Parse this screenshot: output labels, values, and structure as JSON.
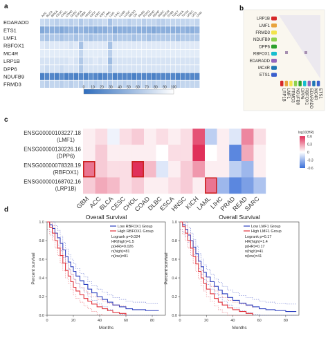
{
  "panel_labels": {
    "a": "a",
    "b": "b",
    "c": "c",
    "d": "d"
  },
  "colors": {
    "blue_dark": "#2f6dbd",
    "blue_light": "#e8f0fa",
    "red": "#e0303a",
    "highlight": "#cc2222"
  },
  "panel_a": {
    "rows": [
      "EDARADD",
      "ETS1",
      "LMF1",
      "RBFOX1",
      "MC4R",
      "LRP1B",
      "DPP6",
      "NDUFB9",
      "FRMD3"
    ],
    "cols": [
      "ACC",
      "BLCA",
      "BRCA",
      "CESC",
      "CHOL",
      "COAD",
      "DLBC",
      "ESCA",
      "GBM",
      "HNSC",
      "KICH",
      "KIRC",
      "KIRP",
      "LAML",
      "LGG",
      "LIHC",
      "LUAD",
      "LUSC",
      "MESO",
      "OV",
      "PAAD",
      "PCPG",
      "PRAD",
      "READ",
      "SARC",
      "SKCM",
      "STAD",
      "TGCT",
      "THCA",
      "THYM",
      "UCEC",
      "UCS",
      "UVM"
    ],
    "values": [
      [
        0.15,
        0.2,
        0.2,
        0.25,
        0.2,
        0.2,
        0.25,
        0.2,
        0.3,
        0.2,
        0.25,
        0.2,
        0.2,
        0.15,
        0.35,
        0.2,
        0.2,
        0.2,
        0.25,
        0.2,
        0.2,
        0.25,
        0.2,
        0.2,
        0.25,
        0.25,
        0.2,
        0.2,
        0.2,
        0.2,
        0.2,
        0.15,
        0.2
      ],
      [
        0.55,
        0.5,
        0.5,
        0.5,
        0.55,
        0.5,
        0.45,
        0.5,
        0.45,
        0.5,
        0.5,
        0.55,
        0.5,
        0.5,
        0.45,
        0.55,
        0.5,
        0.5,
        0.5,
        0.45,
        0.5,
        0.5,
        0.5,
        0.55,
        0.5,
        0.5,
        0.5,
        0.5,
        0.5,
        0.45,
        0.5,
        0.5,
        0.45
      ],
      [
        0.3,
        0.35,
        0.3,
        0.3,
        0.35,
        0.3,
        0.3,
        0.35,
        0.3,
        0.3,
        0.35,
        0.3,
        0.3,
        0.3,
        0.3,
        0.35,
        0.3,
        0.3,
        0.3,
        0.35,
        0.3,
        0.3,
        0.35,
        0.3,
        0.3,
        0.3,
        0.3,
        0.3,
        0.35,
        0.3,
        0.3,
        0.3,
        0.3
      ],
      [
        0.05,
        0.1,
        0.05,
        0.05,
        0.05,
        0.05,
        0.1,
        0.05,
        0.35,
        0.05,
        0.05,
        0.05,
        0.05,
        0.05,
        0.35,
        0.05,
        0.05,
        0.05,
        0.05,
        0.05,
        0.05,
        0.05,
        0.05,
        0.05,
        0.05,
        0.05,
        0.05,
        0.05,
        0.05,
        0.05,
        0.05,
        0.05,
        0.05
      ],
      [
        0.03,
        0.03,
        0.03,
        0.03,
        0.03,
        0.03,
        0.03,
        0.03,
        0.2,
        0.03,
        0.03,
        0.03,
        0.03,
        0.03,
        0.25,
        0.03,
        0.03,
        0.03,
        0.03,
        0.03,
        0.03,
        0.03,
        0.03,
        0.03,
        0.03,
        0.03,
        0.03,
        0.03,
        0.03,
        0.03,
        0.03,
        0.03,
        0.03
      ],
      [
        0.1,
        0.1,
        0.1,
        0.1,
        0.1,
        0.1,
        0.05,
        0.1,
        0.3,
        0.1,
        0.1,
        0.05,
        0.1,
        0.05,
        0.4,
        0.1,
        0.1,
        0.1,
        0.1,
        0.1,
        0.1,
        0.1,
        0.1,
        0.1,
        0.1,
        0.1,
        0.1,
        0.1,
        0.1,
        0.1,
        0.1,
        0.1,
        0.1
      ],
      [
        0.1,
        0.15,
        0.1,
        0.1,
        0.15,
        0.1,
        0.1,
        0.1,
        0.3,
        0.1,
        0.1,
        0.1,
        0.1,
        0.1,
        0.3,
        0.1,
        0.1,
        0.1,
        0.1,
        0.1,
        0.1,
        0.1,
        0.1,
        0.1,
        0.1,
        0.1,
        0.1,
        0.1,
        0.1,
        0.1,
        0.1,
        0.1,
        0.1
      ],
      [
        0.85,
        0.8,
        0.8,
        0.85,
        0.75,
        0.85,
        0.8,
        0.85,
        0.8,
        0.85,
        0.75,
        0.8,
        0.85,
        0.8,
        0.75,
        0.85,
        0.8,
        0.8,
        0.8,
        0.85,
        0.8,
        0.8,
        0.8,
        0.85,
        0.8,
        0.8,
        0.8,
        0.8,
        0.85,
        0.8,
        0.8,
        0.8,
        0.8
      ],
      [
        0.2,
        0.25,
        0.2,
        0.2,
        0.25,
        0.2,
        0.25,
        0.2,
        0.25,
        0.2,
        0.2,
        0.25,
        0.2,
        0.2,
        0.25,
        0.2,
        0.2,
        0.25,
        0.2,
        0.2,
        0.25,
        0.2,
        0.2,
        0.25,
        0.2,
        0.2,
        0.2,
        0.2,
        0.25,
        0.2,
        0.2,
        0.2,
        0.2
      ]
    ],
    "scale_ticks": [
      "0",
      "10",
      "20",
      "30",
      "40",
      "50",
      "60",
      "70",
      "80",
      "90",
      "100"
    ]
  },
  "panel_b": {
    "genes": [
      "LRP1B",
      "LMF1",
      "FRMD3",
      "NDUFB9",
      "DPP6",
      "RBFOX1",
      "EDARADD",
      "MC4R",
      "ETS1"
    ],
    "swatch_colors": [
      "#d62728",
      "#e8a33d",
      "#f2e34c",
      "#8fd14f",
      "#2ca02c",
      "#17becf",
      "#9467bd",
      "#1f77b4",
      "#3a5fcd"
    ]
  },
  "panel_c": {
    "rows": [
      {
        "id": "ENSG00000103227.18",
        "name": "(LMF1)"
      },
      {
        "id": "ENSG00000130226.16",
        "name": "(DPP6)"
      },
      {
        "id": "ENSG00000078328.19",
        "name": "(RBFOX1)"
      },
      {
        "id": "ENSG00000168702.16",
        "name": "(LRP1B)"
      }
    ],
    "cols": [
      "GBM",
      "ACC",
      "BLCA",
      "CESC",
      "CHOL",
      "COAD",
      "DLBC",
      "ESCA",
      "HNSC",
      "KICH",
      "LAML",
      "LIHC",
      "PRAD",
      "READ",
      "SARC"
    ],
    "values": [
      [
        0.05,
        0.1,
        -0.05,
        0.1,
        0.15,
        0.05,
        0.1,
        0.05,
        0.1,
        0.5,
        -0.2,
        0.05,
        -0.1,
        0.35,
        0.1
      ],
      [
        0.05,
        0.15,
        0.05,
        0.05,
        0.05,
        0.05,
        0.0,
        0.1,
        0.1,
        0.75,
        0.0,
        0.05,
        -0.5,
        0.25,
        0.05
      ],
      [
        0.4,
        0.15,
        0.1,
        0.1,
        0.7,
        0.2,
        -0.1,
        0.05,
        0.15,
        0.3,
        0.05,
        0.05,
        -0.2,
        -0.3,
        0.05
      ],
      [
        0.15,
        0.25,
        0.2,
        0.1,
        0.15,
        0.05,
        0.05,
        0.1,
        0.15,
        0.05,
        0.4,
        -0.3,
        -0.5,
        -0.4,
        -0.25
      ]
    ],
    "highlight": [
      [
        2,
        0
      ],
      [
        2,
        4
      ],
      [
        3,
        10
      ]
    ],
    "legend_title": "log10(HR)",
    "legend_ticks": [
      "0.6",
      "0.3",
      "0",
      "-0.3",
      "-0.6"
    ],
    "vmin": -0.6,
    "vmax": 0.6
  },
  "panel_d": [
    {
      "title": "Overall Survival",
      "legend_low": "Low RBFOX1 Group",
      "legend_high": "High RBFOX1 Group",
      "stats": [
        "Logrank p=0.024",
        "HR(high)=1.5",
        "p(HR)=0.026",
        "n(high)=81",
        "n(low)=81"
      ],
      "ylabel": "Percent survival",
      "xlabel": "Months",
      "xticks": [
        0,
        20,
        40,
        60,
        80
      ],
      "yticks": [
        0.0,
        0.2,
        0.4,
        0.6,
        0.8,
        1.0
      ],
      "xmax": 90,
      "low": [
        [
          0,
          1.0
        ],
        [
          2,
          0.97
        ],
        [
          4,
          0.93
        ],
        [
          6,
          0.88
        ],
        [
          8,
          0.83
        ],
        [
          10,
          0.77
        ],
        [
          12,
          0.7
        ],
        [
          14,
          0.63
        ],
        [
          16,
          0.57
        ],
        [
          18,
          0.52
        ],
        [
          20,
          0.47
        ],
        [
          22,
          0.42
        ],
        [
          25,
          0.37
        ],
        [
          28,
          0.33
        ],
        [
          31,
          0.28
        ],
        [
          34,
          0.24
        ],
        [
          38,
          0.2
        ],
        [
          42,
          0.17
        ],
        [
          46,
          0.14
        ],
        [
          50,
          0.11
        ],
        [
          55,
          0.09
        ],
        [
          60,
          0.07
        ],
        [
          65,
          0.06
        ],
        [
          70,
          0.06
        ],
        [
          75,
          0.05
        ],
        [
          80,
          0.05
        ],
        [
          85,
          0.05
        ]
      ],
      "high": [
        [
          0,
          1.0
        ],
        [
          2,
          0.94
        ],
        [
          4,
          0.88
        ],
        [
          6,
          0.8
        ],
        [
          8,
          0.72
        ],
        [
          10,
          0.64
        ],
        [
          12,
          0.56
        ],
        [
          14,
          0.48
        ],
        [
          16,
          0.42
        ],
        [
          18,
          0.36
        ],
        [
          20,
          0.3
        ],
        [
          22,
          0.26
        ],
        [
          25,
          0.22
        ],
        [
          28,
          0.18
        ],
        [
          31,
          0.15
        ],
        [
          34,
          0.12
        ],
        [
          38,
          0.09
        ],
        [
          42,
          0.07
        ],
        [
          46,
          0.05
        ],
        [
          50,
          0.03
        ],
        [
          55,
          0.02
        ],
        [
          60,
          0.0
        ]
      ]
    },
    {
      "title": "Overall Survival",
      "legend_low": "Low LMF1 Group",
      "legend_high": "High LMF1 Group",
      "stats": [
        "Logrank p=0.17",
        "HR(high)=1.4",
        "p(HR)=0.17",
        "n(high)=41",
        "n(low)=41"
      ],
      "ylabel": "Percent survival",
      "xlabel": "Months",
      "xticks": [
        0,
        20,
        40,
        60,
        80
      ],
      "yticks": [
        0.0,
        0.2,
        0.4,
        0.6,
        0.8,
        1.0
      ],
      "xmax": 90,
      "low": [
        [
          0,
          1.0
        ],
        [
          2,
          0.97
        ],
        [
          4,
          0.92
        ],
        [
          6,
          0.86
        ],
        [
          8,
          0.8
        ],
        [
          10,
          0.73
        ],
        [
          12,
          0.66
        ],
        [
          14,
          0.58
        ],
        [
          16,
          0.52
        ],
        [
          18,
          0.46
        ],
        [
          20,
          0.41
        ],
        [
          23,
          0.36
        ],
        [
          26,
          0.31
        ],
        [
          29,
          0.27
        ],
        [
          32,
          0.23
        ],
        [
          36,
          0.19
        ],
        [
          40,
          0.16
        ],
        [
          45,
          0.13
        ],
        [
          50,
          0.11
        ],
        [
          55,
          0.09
        ],
        [
          60,
          0.07
        ],
        [
          65,
          0.06
        ],
        [
          72,
          0.05
        ],
        [
          80,
          0.04
        ],
        [
          88,
          0.04
        ]
      ],
      "high": [
        [
          0,
          1.0
        ],
        [
          2,
          0.95
        ],
        [
          4,
          0.88
        ],
        [
          6,
          0.8
        ],
        [
          8,
          0.72
        ],
        [
          10,
          0.63
        ],
        [
          12,
          0.55
        ],
        [
          14,
          0.47
        ],
        [
          16,
          0.4
        ],
        [
          18,
          0.34
        ],
        [
          20,
          0.28
        ],
        [
          23,
          0.23
        ],
        [
          26,
          0.18
        ],
        [
          29,
          0.14
        ],
        [
          32,
          0.11
        ],
        [
          36,
          0.08
        ],
        [
          40,
          0.06
        ],
        [
          45,
          0.04
        ],
        [
          50,
          0.02
        ],
        [
          55,
          0.0
        ]
      ]
    }
  ]
}
